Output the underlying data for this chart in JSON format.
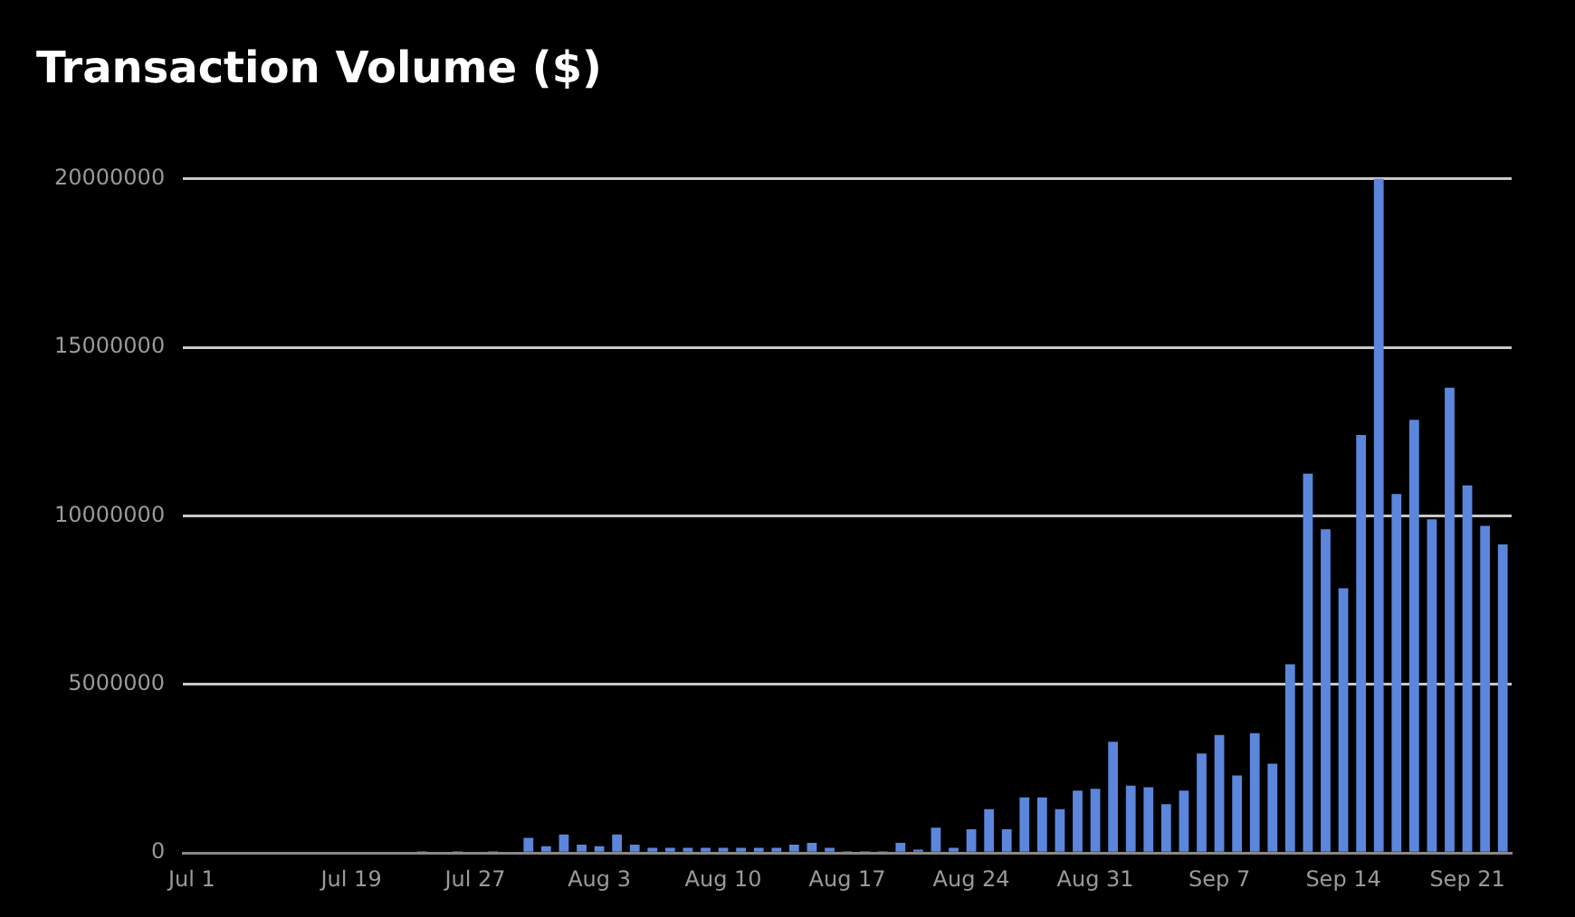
{
  "chart_data": {
    "type": "bar",
    "title": "Transaction Volume ($)",
    "categories": [
      "Jul 1",
      null,
      null,
      null,
      null,
      null,
      null,
      null,
      null,
      "Jul 19",
      null,
      null,
      null,
      null,
      null,
      null,
      "Jul 27",
      null,
      null,
      null,
      null,
      null,
      null,
      "Aug 3",
      null,
      null,
      null,
      null,
      null,
      null,
      "Aug 10",
      null,
      null,
      null,
      null,
      null,
      null,
      "Aug 17",
      null,
      null,
      null,
      null,
      null,
      null,
      "Aug 24",
      null,
      null,
      null,
      null,
      null,
      null,
      "Aug 31",
      null,
      null,
      null,
      null,
      null,
      null,
      "Sep 7",
      null,
      null,
      null,
      null,
      null,
      null,
      "Sep 14",
      null,
      null,
      null,
      null,
      null,
      null,
      "Sep 21",
      null,
      null
    ],
    "values": [
      0,
      0,
      0,
      0,
      0,
      0,
      0,
      0,
      0,
      0,
      0,
      0,
      0,
      50000,
      0,
      50000,
      0,
      50000,
      0,
      450000,
      200000,
      550000,
      250000,
      200000,
      550000,
      250000,
      150000,
      150000,
      150000,
      150000,
      150000,
      150000,
      150000,
      150000,
      250000,
      300000,
      150000,
      50000,
      50000,
      50000,
      300000,
      100000,
      750000,
      150000,
      700000,
      1300000,
      700000,
      1650000,
      1650000,
      1300000,
      1850000,
      1900000,
      3300000,
      2000000,
      1950000,
      1450000,
      1850000,
      2950000,
      3500000,
      2300000,
      3550000,
      2650000,
      5600000,
      11250000,
      9600000,
      7850000,
      12400000,
      20000000,
      10650000,
      12850000,
      9900000,
      13800000,
      10900000,
      9700000,
      9150000
    ],
    "color": "#5b86dc",
    "ylim": [
      0,
      20000000
    ],
    "yticks": [
      0,
      5000000,
      10000000,
      15000000,
      20000000
    ],
    "grid": "y"
  }
}
